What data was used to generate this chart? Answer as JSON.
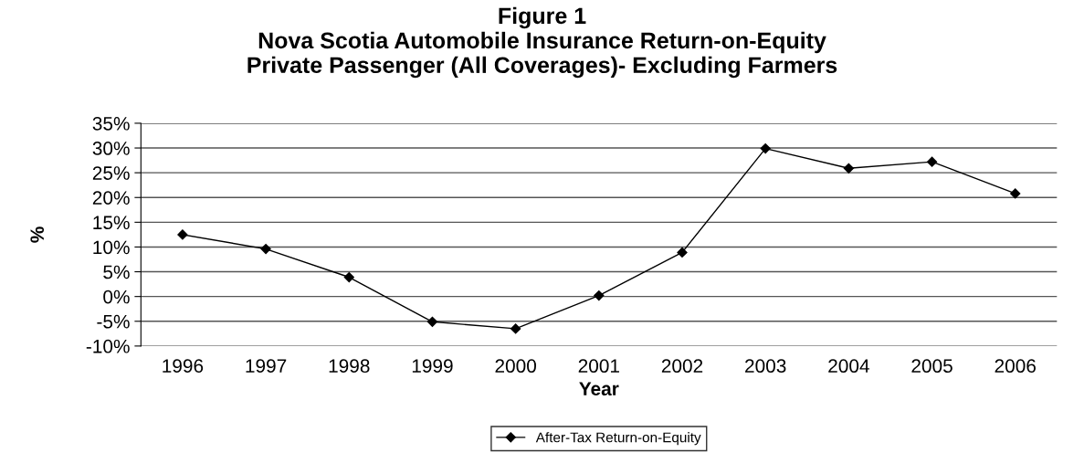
{
  "chart_data": {
    "type": "line",
    "title": "Figure 1\nNova Scotia Automobile Insurance Return-on-Equity\nPrivate Passenger (All Coverages)- Excluding Farmers",
    "xlabel": "Year",
    "ylabel": "%",
    "categories": [
      "1996",
      "1997",
      "1998",
      "1999",
      "2000",
      "2001",
      "2002",
      "2003",
      "2004",
      "2005",
      "2006"
    ],
    "series": [
      {
        "name": "After-Tax Return-on-Equity",
        "color": "#000000",
        "values": [
          12.5,
          9.6,
          3.9,
          -5.1,
          -6.5,
          0.2,
          8.9,
          29.9,
          25.9,
          27.2,
          20.8
        ]
      }
    ],
    "ylim": [
      -10,
      35
    ],
    "yticks": [
      {
        "value": -10,
        "label": "-10%"
      },
      {
        "value": -5,
        "label": "-5%"
      },
      {
        "value": 0,
        "label": "0%"
      },
      {
        "value": 5,
        "label": "5%"
      },
      {
        "value": 10,
        "label": "10%"
      },
      {
        "value": 15,
        "label": "15%"
      },
      {
        "value": 20,
        "label": "20%"
      },
      {
        "value": 25,
        "label": "25%"
      },
      {
        "value": 30,
        "label": "30%"
      },
      {
        "value": 35,
        "label": "35%"
      }
    ],
    "grid": "y",
    "legend": "bottom",
    "marker": "diamond",
    "line_style": "solid"
  }
}
